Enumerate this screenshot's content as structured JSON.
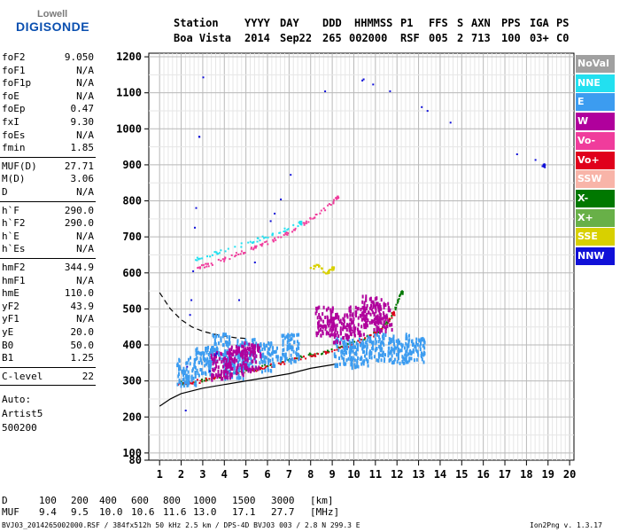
{
  "logo": {
    "top": "Lowell",
    "main": "DIGISONDE"
  },
  "header": {
    "labels": [
      "Station",
      "YYYY",
      "DAY",
      "DDD",
      "HHMMSS",
      "P1",
      "FFS",
      "S",
      "AXN",
      "PPS",
      "IGA",
      "PS"
    ],
    "values": [
      "Boa Vista",
      "2014",
      "Sep22",
      "265",
      "002000",
      "RSF",
      "005",
      "2",
      "713",
      "100",
      "03+",
      "C0"
    ]
  },
  "params_group1": [
    {
      "k": "foF2",
      "v": "9.050"
    },
    {
      "k": "foF1",
      "v": "N/A"
    },
    {
      "k": "foF1p",
      "v": "N/A"
    },
    {
      "k": "foE",
      "v": "N/A"
    },
    {
      "k": "foEp",
      "v": "0.47"
    },
    {
      "k": "fxI",
      "v": "9.30"
    },
    {
      "k": "foEs",
      "v": "N/A"
    },
    {
      "k": "fmin",
      "v": "1.85"
    }
  ],
  "params_group2": [
    {
      "k": "MUF(D)",
      "v": "27.71"
    },
    {
      "k": "M(D)",
      "v": "3.06"
    },
    {
      "k": "D",
      "v": "N/A"
    }
  ],
  "params_group3": [
    {
      "k": "h`F",
      "v": "290.0"
    },
    {
      "k": "h`F2",
      "v": "290.0"
    },
    {
      "k": "h`E",
      "v": "N/A"
    },
    {
      "k": "h`Es",
      "v": "N/A"
    }
  ],
  "params_group4": [
    {
      "k": "hmF2",
      "v": "344.9"
    },
    {
      "k": "hmF1",
      "v": "N/A"
    },
    {
      "k": "hmE",
      "v": "110.0"
    },
    {
      "k": "yF2",
      "v": "43.9"
    },
    {
      "k": "yF1",
      "v": "N/A"
    },
    {
      "k": "yE",
      "v": "20.0"
    },
    {
      "k": "B0",
      "v": "50.0"
    },
    {
      "k": "B1",
      "v": "1.25"
    }
  ],
  "params_group5": [
    {
      "k": "C-level",
      "v": "22"
    }
  ],
  "notes": [
    "Auto:",
    "Artist5",
    "500200"
  ],
  "legend": [
    {
      "label": "NoVal",
      "color": "#a0a0a0"
    },
    {
      "label": "NNE",
      "color": "#22e0f0"
    },
    {
      "label": "E",
      "color": "#3c9cf0"
    },
    {
      "label": "W",
      "color": "#b0009c"
    },
    {
      "label": "Vo-",
      "color": "#f03c9c"
    },
    {
      "label": "Vo+",
      "color": "#e0001c"
    },
    {
      "label": "SSW",
      "color": "#f8b4a8"
    },
    {
      "label": "X-",
      "color": "#007800"
    },
    {
      "label": "X+",
      "color": "#68b048"
    },
    {
      "label": "SSE",
      "color": "#d8d000"
    },
    {
      "label": "NNW",
      "color": "#1010d8"
    }
  ],
  "footer": {
    "d_label": "D",
    "d_values": [
      "100",
      "200",
      "400",
      "600",
      "800",
      "1000",
      "1500",
      "3000",
      "[km]"
    ],
    "muf_label": "MUF",
    "muf_values": [
      "9.4",
      "9.5",
      "10.0",
      "10.6",
      "11.6",
      "13.0",
      "17.1",
      "27.7",
      "[MHz]"
    ],
    "info_left": "BVJ03_2014265002000.RSF / 384fx512h 50 kHz 2.5 km / DPS-4D BVJ03 003 / 2.8 N 299.3 E",
    "info_right": "Ion2Png v. 1.3.17"
  },
  "chart_data": {
    "type": "scatter",
    "title": "",
    "xlabel": "",
    "ylabel": "",
    "x_ticks": [
      1,
      2,
      3,
      4,
      5,
      6,
      7,
      8,
      9,
      10,
      11,
      12,
      13,
      14,
      15,
      16,
      17,
      18,
      19,
      20
    ],
    "y_ticks": [
      80,
      100,
      200,
      300,
      400,
      500,
      600,
      700,
      800,
      900,
      1000,
      1100,
      1200
    ],
    "xlim": [
      0.5,
      20.2
    ],
    "ylim": [
      80,
      1210
    ],
    "grid": true,
    "legend_position": "right",
    "series": [
      {
        "name": "X-",
        "color": "#007800",
        "points": [
          [
            1.9,
            295
          ],
          [
            2.5,
            300
          ],
          [
            3.5,
            312
          ],
          [
            4.5,
            325
          ],
          [
            5.5,
            338
          ],
          [
            6.5,
            352
          ],
          [
            7.5,
            368
          ],
          [
            8.5,
            382
          ],
          [
            9.5,
            400
          ],
          [
            10.5,
            420
          ],
          [
            11.2,
            445
          ],
          [
            11.7,
            480
          ],
          [
            12.0,
            525
          ],
          [
            12.2,
            548
          ]
        ]
      },
      {
        "name": "Vo+",
        "color": "#e0001c",
        "points": [
          [
            1.8,
            292
          ],
          [
            2.5,
            298
          ],
          [
            3.5,
            310
          ],
          [
            4.5,
            322
          ],
          [
            5.5,
            336
          ],
          [
            6.5,
            350
          ],
          [
            7.5,
            365
          ],
          [
            8.5,
            380
          ],
          [
            9.5,
            398
          ],
          [
            10.5,
            418
          ],
          [
            11.0,
            435
          ],
          [
            11.5,
            462
          ],
          [
            11.8,
            490
          ]
        ]
      },
      {
        "name": "Vo-",
        "color": "#f03c9c",
        "points": [
          [
            2.6,
            615
          ],
          [
            3.2,
            625
          ],
          [
            4.0,
            640
          ],
          [
            4.8,
            660
          ],
          [
            5.5,
            675
          ],
          [
            6.3,
            695
          ],
          [
            7.0,
            715
          ],
          [
            7.8,
            745
          ],
          [
            8.5,
            775
          ],
          [
            9.2,
            810
          ]
        ]
      },
      {
        "name": "NNE",
        "color": "#22e0f0",
        "points": [
          [
            2.6,
            640
          ],
          [
            3.5,
            655
          ],
          [
            4.5,
            675
          ],
          [
            5.5,
            695
          ],
          [
            6.5,
            715
          ],
          [
            7.5,
            740
          ]
        ]
      },
      {
        "name": "E",
        "color": "#3c9cf0",
        "points": [
          [
            2.2,
            330
          ],
          [
            3.0,
            360
          ],
          [
            3.8,
            395
          ],
          [
            4.4,
            350
          ],
          [
            5.0,
            380
          ],
          [
            6.0,
            370
          ],
          [
            7.0,
            395
          ],
          [
            9.5,
            385
          ],
          [
            10.2,
            380
          ],
          [
            11.0,
            395
          ],
          [
            12.0,
            390
          ],
          [
            12.8,
            395
          ]
        ]
      },
      {
        "name": "W",
        "color": "#b0009c",
        "points": [
          [
            3.8,
            345
          ],
          [
            4.6,
            360
          ],
          [
            5.2,
            370
          ],
          [
            8.6,
            470
          ],
          [
            9.3,
            450
          ],
          [
            10.2,
            470
          ],
          [
            10.8,
            500
          ],
          [
            11.3,
            480
          ]
        ]
      },
      {
        "name": "SSE",
        "color": "#d8d000",
        "points": [
          [
            7.9,
            610
          ],
          [
            8.3,
            625
          ],
          [
            8.7,
            600
          ],
          [
            9.0,
            615
          ]
        ]
      },
      {
        "name": "NNW",
        "color": "#1010d8",
        "points": [
          [
            3.0,
            1190
          ],
          [
            2.1,
            160
          ],
          [
            9.1,
            1175
          ],
          [
            18.8,
            900
          ]
        ]
      }
    ],
    "curves": [
      {
        "label": "O-trace profile",
        "x": [
          1.0,
          1.5,
          2.0,
          3.0,
          4.0,
          5.0,
          6.0,
          7.0,
          8.0,
          8.5,
          9.0,
          9.2
        ],
        "y": [
          230,
          250,
          265,
          280,
          290,
          300,
          310,
          320,
          335,
          340,
          345,
          348
        ]
      },
      {
        "label": "X-trace profile",
        "x": [
          1.0,
          1.5,
          2.0,
          2.5,
          3.0,
          3.5,
          4.0,
          4.5,
          5.0
        ],
        "y": [
          545,
          500,
          470,
          450,
          438,
          430,
          425,
          420,
          418
        ]
      }
    ]
  }
}
